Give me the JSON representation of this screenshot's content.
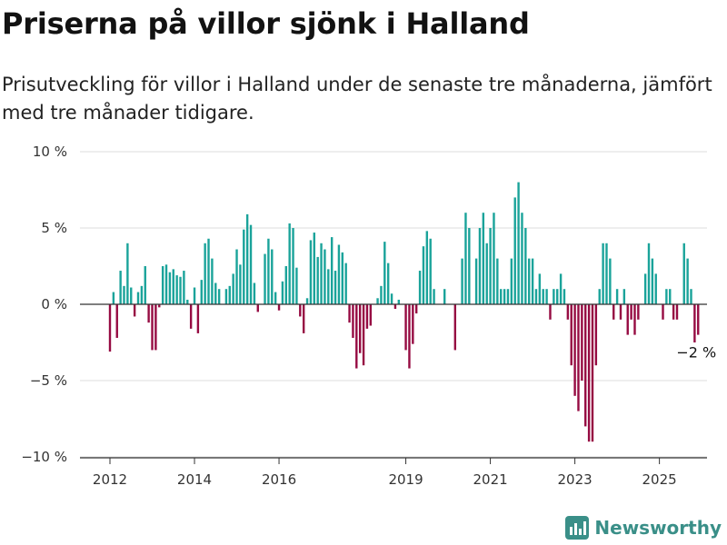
{
  "title": "Priserna på villor sjönk i Halland",
  "subtitle": "Prisutveckling för villor i Halland under de senaste tre månaderna, jämfört med tre månader tidigare.",
  "brand": {
    "name": "Newsworthy",
    "icon": "bar-chart-logo-icon"
  },
  "colors": {
    "positive": "#1aa39a",
    "negative": "#960b42",
    "grid": "#dddddd",
    "zero": "#333333"
  },
  "chart_data": {
    "type": "bar",
    "unit": "%",
    "ylim": [
      -10,
      10
    ],
    "yticks": [
      {
        "value": 10,
        "label": "10 %"
      },
      {
        "value": 5,
        "label": "5 %"
      },
      {
        "value": 0,
        "label": "0 %"
      },
      {
        "value": -5,
        "label": "−5 %"
      },
      {
        "value": -10,
        "label": "−10 %"
      }
    ],
    "xticks": [
      {
        "year": 2012,
        "label": "2012"
      },
      {
        "year": 2014,
        "label": "2014"
      },
      {
        "year": 2016,
        "label": "2016"
      },
      {
        "year": 2019,
        "label": "2019"
      },
      {
        "year": 2021,
        "label": "2021"
      },
      {
        "year": 2023,
        "label": "2023"
      },
      {
        "year": 2025,
        "label": "2025"
      }
    ],
    "start": "2012-01",
    "end": "2025-06",
    "last_value_label": "−2 %",
    "grid": true,
    "values": [
      -3.1,
      0.8,
      -2.2,
      2.2,
      1.2,
      4.0,
      1.1,
      -0.8,
      0.8,
      1.2,
      2.5,
      -1.2,
      -3.0,
      -3.0,
      -0.2,
      2.5,
      2.6,
      2.1,
      2.3,
      1.9,
      1.8,
      2.2,
      0.3,
      -1.6,
      1.1,
      -1.9,
      1.6,
      4.0,
      4.3,
      3.0,
      1.4,
      1.0,
      0.0,
      1.0,
      1.2,
      2.0,
      3.6,
      2.6,
      4.9,
      5.9,
      5.2,
      1.4,
      -0.5,
      0.0,
      3.3,
      4.3,
      3.6,
      0.8,
      -0.4,
      1.5,
      2.5,
      5.3,
      5.0,
      2.4,
      -0.8,
      -1.9,
      0.4,
      4.2,
      4.7,
      3.1,
      4.0,
      3.6,
      2.3,
      4.4,
      2.2,
      3.9,
      3.4,
      2.7,
      -1.2,
      -2.2,
      -4.2,
      -3.2,
      -4.0,
      -1.6,
      -1.4,
      0.0,
      0.4,
      1.2,
      4.1,
      2.7,
      0.7,
      -0.3,
      0.3,
      0.0,
      -3.0,
      -4.2,
      -2.6,
      -0.6,
      2.2,
      3.8,
      4.8,
      4.3,
      1.0,
      0.0,
      0.0,
      1.0,
      0.0,
      0.0,
      -3.0,
      0.0,
      3.0,
      6.0,
      5.0,
      0.0,
      3.0,
      5.0,
      6.0,
      4.0,
      5.0,
      6.0,
      3.0,
      1.0,
      1.0,
      1.0,
      3.0,
      7.0,
      8.0,
      6.0,
      5.0,
      3.0,
      3.0,
      1.0,
      2.0,
      1.0,
      1.0,
      -1.0,
      1.0,
      1.0,
      2.0,
      1.0,
      -1.0,
      -4.0,
      -6.0,
      -7.0,
      -5.0,
      -8.0,
      -9.0,
      -9.0,
      -4.0,
      1.0,
      4.0,
      4.0,
      3.0,
      -1.0,
      1.0,
      -1.0,
      1.0,
      -2.0,
      -1.0,
      -2.0,
      -1.0,
      0.0,
      2.0,
      4.0,
      3.0,
      2.0,
      0.0,
      -1.0,
      1.0,
      1.0,
      -1.0,
      -1.0,
      0.0,
      4.0,
      3.0,
      1.0,
      -2.5,
      -2.0
    ]
  }
}
